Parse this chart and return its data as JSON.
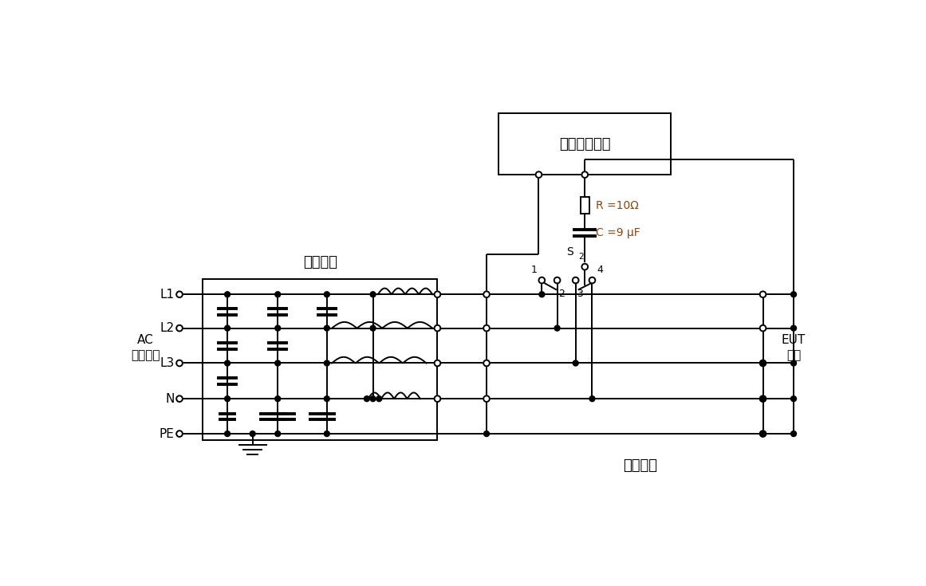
{
  "bg_color": "#ffffff",
  "line_color": "#000000",
  "label_AC_1": "AC",
  "label_AC_2": "电源端口",
  "label_EUT_1": "EUT",
  "label_EUT_2": "端口",
  "label_decoupling": "去耦网络",
  "label_coupling": "耦合网络",
  "label_generator": "组合波发生器",
  "label_R": "R =10Ω",
  "label_C": "C =9 μF",
  "lines": [
    "L1",
    "L2",
    "L3",
    "N",
    "PE"
  ],
  "fig_width": 11.61,
  "fig_height": 7.35,
  "lw": 1.4
}
